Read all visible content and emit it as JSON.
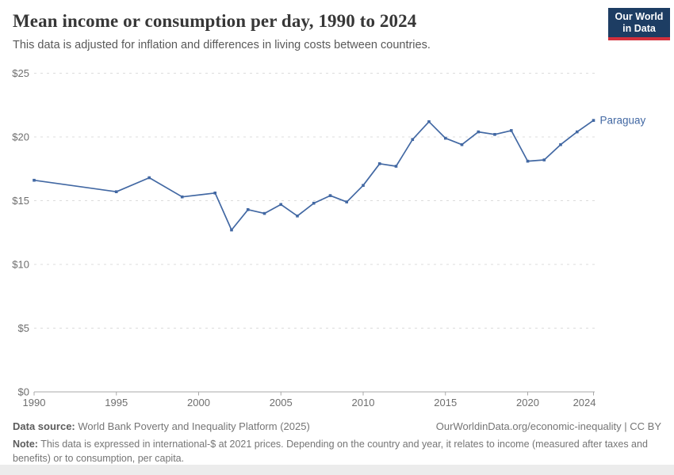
{
  "header": {
    "title": "Mean income or consumption per day, 1990 to 2024",
    "subtitle": "This data is adjusted for inflation and differences in living costs between countries."
  },
  "logo": {
    "line1": "Our World",
    "line2": "in Data",
    "bg_color": "#1d3d63",
    "accent_color": "#d3303c"
  },
  "chart_data": {
    "type": "line",
    "title": "Mean income or consumption per day, 1990 to 2024",
    "xlabel": "",
    "ylabel": "",
    "xlim": [
      1990,
      2024
    ],
    "ylim": [
      0,
      25
    ],
    "grid": "horizontal-dashed",
    "legend_position": "end-of-line-label",
    "yticks": [
      0,
      5,
      10,
      15,
      20,
      25
    ],
    "ytick_labels": [
      "$0",
      "$5",
      "$10",
      "$15",
      "$20",
      "$25"
    ],
    "xticks": [
      1990,
      1995,
      2000,
      2005,
      2010,
      2015,
      2020,
      2024
    ],
    "series": [
      {
        "name": "Paraguay",
        "color": "#4268a3",
        "x": [
          1990,
          1995,
          1997,
          1999,
          2001,
          2002,
          2003,
          2004,
          2005,
          2006,
          2007,
          2008,
          2009,
          2010,
          2011,
          2012,
          2013,
          2014,
          2015,
          2016,
          2017,
          2018,
          2019,
          2020,
          2021,
          2022,
          2023,
          2024
        ],
        "values": [
          16.6,
          15.7,
          16.8,
          15.3,
          15.6,
          12.7,
          14.3,
          14.0,
          14.7,
          13.8,
          14.8,
          15.4,
          14.9,
          16.2,
          17.9,
          17.7,
          19.8,
          21.2,
          19.9,
          19.4,
          20.4,
          20.2,
          20.5,
          18.1,
          18.2,
          19.4,
          20.4,
          21.3
        ]
      }
    ]
  },
  "footer": {
    "datasource_label": "Data source:",
    "datasource_text": " World Bank Poverty and Inequality Platform (2025)",
    "rights_text": "OurWorldinData.org/economic-inequality | CC BY",
    "note_label": "Note:",
    "note_text": " This data is expressed in international-$ at 2021 prices. Depending on the country and year, it relates to income (measured after taxes and benefits) or to consumption, per capita."
  }
}
